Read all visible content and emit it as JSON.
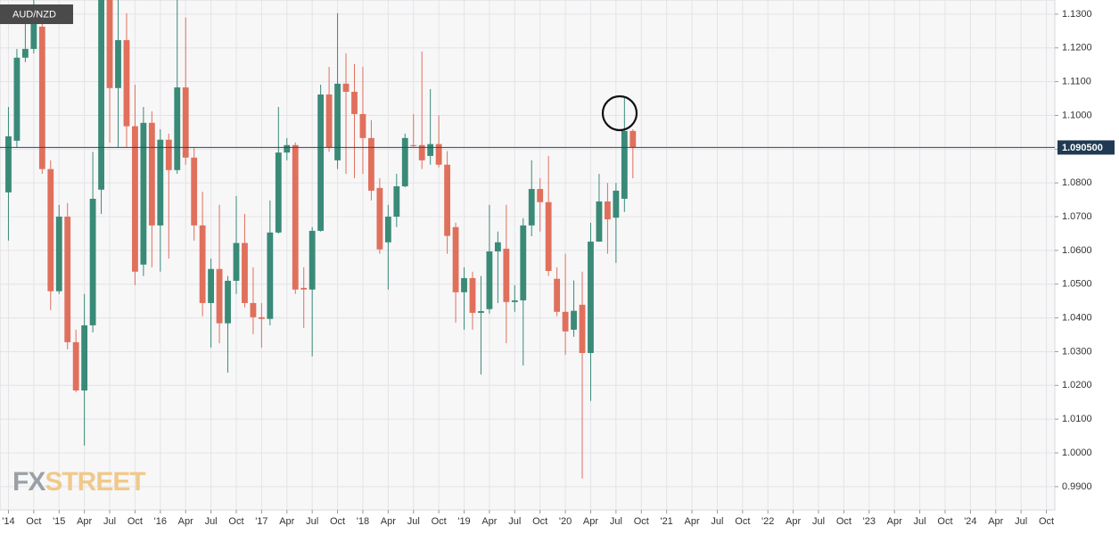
{
  "chart_data": {
    "type": "candlestick",
    "title": "AUD/NZD",
    "watermark": {
      "fx": "FX",
      "street": "STREET"
    },
    "x": [
      "2014-07",
      "2014-08",
      "2014-09",
      "2014-10",
      "2014-11",
      "2014-12",
      "2015-01",
      "2015-02",
      "2015-03",
      "2015-04",
      "2015-05",
      "2015-06",
      "2015-07",
      "2015-08",
      "2015-09",
      "2015-10",
      "2015-11",
      "2015-12",
      "2016-01",
      "2016-02",
      "2016-03",
      "2016-04",
      "2016-05",
      "2016-06",
      "2016-07",
      "2016-08",
      "2016-09",
      "2016-10",
      "2016-11",
      "2016-12",
      "2017-01",
      "2017-02",
      "2017-03",
      "2017-04",
      "2017-05",
      "2017-06",
      "2017-07",
      "2017-08",
      "2017-09",
      "2017-10",
      "2017-11",
      "2017-12",
      "2018-01",
      "2018-02",
      "2018-03",
      "2018-04",
      "2018-05",
      "2018-06",
      "2018-07",
      "2018-08",
      "2018-09",
      "2018-10",
      "2018-11",
      "2018-12",
      "2019-01",
      "2019-02",
      "2019-03",
      "2019-04",
      "2019-05",
      "2019-06",
      "2019-07",
      "2019-08",
      "2019-09",
      "2019-10",
      "2019-11",
      "2019-12",
      "2020-01",
      "2020-02",
      "2020-03",
      "2020-04",
      "2020-05",
      "2020-06",
      "2020-07",
      "2020-08",
      "2020-09"
    ],
    "open": [
      1.0772,
      1.0925,
      1.1171,
      1.1197,
      1.1263,
      1.0841,
      1.0479,
      1.07,
      1.0328,
      1.0185,
      1.0378,
      1.078,
      1.138,
      1.1081,
      1.1223,
      1.0968,
      1.0558,
      1.0978,
      1.0674,
      1.0928,
      1.0838,
      1.1083,
      1.0875,
      1.0674,
      1.0444,
      1.0545,
      1.0384,
      1.051,
      1.0622,
      1.0444,
      1.0402,
      1.0397,
      1.0653,
      1.089,
      1.0912,
      1.0489,
      1.0484,
      1.0658,
      1.1062,
      1.0867,
      1.1094,
      1.107,
      1.1004,
      1.0933,
      1.0785,
      1.0624,
      1.07,
      1.079,
      1.0912,
      1.0912,
      1.088,
      1.0915,
      1.0854,
      1.0669,
      1.0476,
      1.0518,
      1.0415,
      1.0426,
      1.0597,
      1.0605,
      1.0447,
      1.0452,
      1.0674,
      1.0782,
      1.0743,
      1.0516,
      1.0418,
      1.0365,
      1.0439,
      1.0296,
      1.0626,
      1.0745,
      1.0697,
      1.0753,
      1.0954
    ],
    "high": [
      1.1025,
      1.1197,
      1.129,
      1.1342,
      1.1316,
      1.0867,
      1.0735,
      1.074,
      1.0365,
      1.0471,
      1.0892,
      1.142,
      1.142,
      1.1342,
      1.1303,
      1.1091,
      1.1025,
      1.1012,
      1.0959,
      1.0946,
      1.1342,
      1.129,
      1.0906,
      1.0774,
      1.0576,
      1.0735,
      1.0524,
      1.0761,
      1.0708,
      1.055,
      1.0444,
      1.0748,
      1.1025,
      1.0933,
      1.092,
      1.055,
      1.0669,
      1.1091,
      1.1144,
      1.1303,
      1.1184,
      1.1152,
      1.1144,
      1.0986,
      1.0814,
      1.0735,
      1.0827,
      1.0946,
      1.1004,
      1.1189,
      1.1078,
      1.1,
      1.0894,
      1.0682,
      1.055,
      1.0537,
      1.0524,
      1.0735,
      1.0656,
      1.0735,
      1.0497,
      1.0695,
      1.0867,
      1.0814,
      1.088,
      1.055,
      1.059,
      1.0511,
      1.0537,
      1.0682,
      1.0827,
      1.08,
      1.08,
      1.1052,
      1.0959
    ],
    "low": [
      1.0629,
      1.0906,
      1.1158,
      1.1184,
      1.0827,
      1.0423,
      1.0471,
      1.0307,
      1.018,
      1.0022,
      1.0357,
      1.0708,
      1.0919,
      1.0906,
      1.0906,
      1.0497,
      1.0524,
      1.055,
      1.0537,
      1.0576,
      1.0827,
      1.0854,
      1.0629,
      1.0405,
      1.0312,
      1.0325,
      1.0238,
      1.0471,
      1.0431,
      1.0352,
      1.0312,
      1.0378,
      1.065,
      1.0867,
      1.0471,
      1.037,
      1.0286,
      1.0656,
      1.0892,
      1.0841,
      1.0827,
      1.0814,
      1.0827,
      1.0748,
      1.059,
      1.0484,
      1.0669,
      1.0787,
      1.0906,
      1.0841,
      1.0854,
      1.0846,
      1.059,
      1.0386,
      1.0365,
      1.0365,
      1.0232,
      1.0413,
      1.0444,
      1.0325,
      1.0418,
      1.0259,
      1.0642,
      1.0656,
      1.0524,
      1.0405,
      1.0291,
      1.0344,
      0.9924,
      1.0154,
      1.0629,
      1.059,
      1.0563,
      1.0714,
      1.0814
    ],
    "close": [
      1.0938,
      1.1171,
      1.1197,
      1.129,
      1.0841,
      1.0479,
      1.07,
      1.0328,
      1.0185,
      1.0378,
      1.0753,
      1.138,
      1.1081,
      1.1223,
      1.0968,
      1.0537,
      1.0978,
      1.0674,
      1.0928,
      1.0838,
      1.1083,
      1.0875,
      1.0674,
      1.0444,
      1.0545,
      1.0384,
      1.051,
      1.0622,
      1.0444,
      1.0402,
      1.0397,
      1.0653,
      1.089,
      1.0912,
      1.0484,
      1.0484,
      1.0658,
      1.1062,
      1.0906,
      1.1094,
      1.107,
      1.1004,
      1.0933,
      1.0777,
      1.0603,
      1.07,
      1.079,
      1.0933,
      1.0909,
      1.0867,
      1.0915,
      1.0854,
      1.0643,
      1.0476,
      1.0518,
      1.0415,
      1.042,
      1.0597,
      1.0624,
      1.0447,
      1.0452,
      1.0674,
      1.0782,
      1.0743,
      1.0539,
      1.0418,
      1.036,
      1.0421,
      1.0296,
      1.0626,
      1.0745,
      1.0692,
      1.0777,
      1.0954,
      1.0906
    ],
    "up_color": "#3a8a78",
    "down_color": "#e0705c",
    "last_price": {
      "value": 1.0905,
      "label": "1.090500"
    },
    "xlim": [
      "2014-06",
      "2024-11"
    ],
    "xticks": [
      {
        "value": "2014-07",
        "label": "'14"
      },
      {
        "value": "2014-10",
        "label": "Oct"
      },
      {
        "value": "2015-01",
        "label": "'15"
      },
      {
        "value": "2015-04",
        "label": "Apr"
      },
      {
        "value": "2015-07",
        "label": "Jul"
      },
      {
        "value": "2015-10",
        "label": "Oct"
      },
      {
        "value": "2016-01",
        "label": "'16"
      },
      {
        "value": "2016-04",
        "label": "Apr"
      },
      {
        "value": "2016-07",
        "label": "Jul"
      },
      {
        "value": "2016-10",
        "label": "Oct"
      },
      {
        "value": "2017-01",
        "label": "'17"
      },
      {
        "value": "2017-04",
        "label": "Apr"
      },
      {
        "value": "2017-07",
        "label": "Jul"
      },
      {
        "value": "2017-10",
        "label": "Oct"
      },
      {
        "value": "2018-01",
        "label": "'18"
      },
      {
        "value": "2018-04",
        "label": "Apr"
      },
      {
        "value": "2018-07",
        "label": "Jul"
      },
      {
        "value": "2018-10",
        "label": "Oct"
      },
      {
        "value": "2019-01",
        "label": "'19"
      },
      {
        "value": "2019-04",
        "label": "Apr"
      },
      {
        "value": "2019-07",
        "label": "Jul"
      },
      {
        "value": "2019-10",
        "label": "Oct"
      },
      {
        "value": "2020-01",
        "label": "'20"
      },
      {
        "value": "2020-04",
        "label": "Apr"
      },
      {
        "value": "2020-07",
        "label": "Jul"
      },
      {
        "value": "2020-10",
        "label": "Oct"
      },
      {
        "value": "2021-01",
        "label": "'21"
      },
      {
        "value": "2021-04",
        "label": "Apr"
      },
      {
        "value": "2021-07",
        "label": "Jul"
      },
      {
        "value": "2021-10",
        "label": "Oct"
      },
      {
        "value": "2022-01",
        "label": "'22"
      },
      {
        "value": "2022-04",
        "label": "Apr"
      },
      {
        "value": "2022-07",
        "label": "Jul"
      },
      {
        "value": "2022-10",
        "label": "Oct"
      },
      {
        "value": "2023-01",
        "label": "'23"
      },
      {
        "value": "2023-04",
        "label": "Apr"
      },
      {
        "value": "2023-07",
        "label": "Jul"
      },
      {
        "value": "2023-10",
        "label": "Oct"
      },
      {
        "value": "2024-01",
        "label": "'24"
      },
      {
        "value": "2024-04",
        "label": "Apr"
      },
      {
        "value": "2024-07",
        "label": "Jul"
      },
      {
        "value": "2024-10",
        "label": "Oct"
      }
    ],
    "ylim": [
      0.9831,
      1.1342
    ],
    "yticks": [
      {
        "value": 0.99,
        "label": "0.9900"
      },
      {
        "value": 1.0,
        "label": "1.0000"
      },
      {
        "value": 1.01,
        "label": "1.0100"
      },
      {
        "value": 1.02,
        "label": "1.0200"
      },
      {
        "value": 1.03,
        "label": "1.0300"
      },
      {
        "value": 1.04,
        "label": "1.0400"
      },
      {
        "value": 1.05,
        "label": "1.0500"
      },
      {
        "value": 1.06,
        "label": "1.0600"
      },
      {
        "value": 1.07,
        "label": "1.0700"
      },
      {
        "value": 1.08,
        "label": "1.0800"
      },
      {
        "value": 1.09,
        "label": "1.0900"
      },
      {
        "value": 1.1,
        "label": "1.1000"
      },
      {
        "value": 1.11,
        "label": "1.1100"
      },
      {
        "value": 1.12,
        "label": "1.1200"
      },
      {
        "value": 1.13,
        "label": "1.1300"
      }
    ],
    "grid": true
  }
}
